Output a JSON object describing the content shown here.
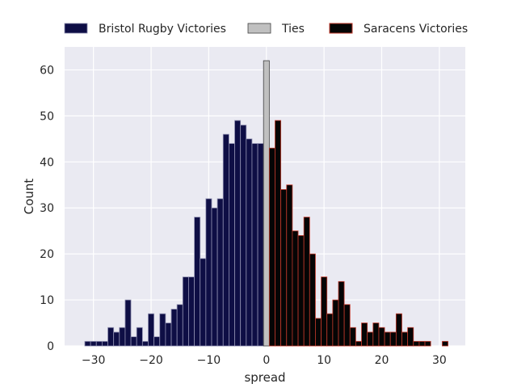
{
  "chart_data": {
    "type": "bar",
    "xlabel": "spread",
    "ylabel": "Count",
    "xlim": [
      -35,
      34.5
    ],
    "ylim": [
      0,
      65
    ],
    "xticks": [
      -30,
      -20,
      -10,
      0,
      10,
      20,
      30
    ],
    "xtick_labels": [
      "−30",
      "−20",
      "−10",
      "0",
      "10",
      "20",
      "30"
    ],
    "yticks": [
      0,
      10,
      20,
      30,
      40,
      50,
      60
    ],
    "ytick_labels": [
      "0",
      "10",
      "20",
      "30",
      "40",
      "50",
      "60"
    ],
    "grid": true,
    "legend_position": "top",
    "series": [
      {
        "name": "Bristol Rugby Victories",
        "color": "#0e0e45",
        "edge": "#8f8fb0",
        "x": [
          -31,
          -30,
          -29,
          -28,
          -27,
          -26,
          -25,
          -24,
          -23,
          -22,
          -21,
          -20,
          -19,
          -18,
          -17,
          -16,
          -15,
          -14,
          -13,
          -12,
          -11,
          -10,
          -9,
          -8,
          -7,
          -6,
          -5,
          -4,
          -3,
          -2,
          -1
        ],
        "values": [
          1,
          1,
          1,
          1,
          4,
          3,
          4,
          10,
          2,
          4,
          1,
          7,
          2,
          7,
          5,
          8,
          9,
          15,
          15,
          28,
          19,
          32,
          30,
          32,
          46,
          44,
          49,
          48,
          45,
          44,
          44
        ]
      },
      {
        "name": "Ties",
        "color": "#c0c0c0",
        "edge": "#404040",
        "x": [
          0
        ],
        "values": [
          62
        ]
      },
      {
        "name": "Saracens Victories",
        "color": "#050505",
        "edge": "#c0392b",
        "x": [
          1,
          2,
          3,
          4,
          5,
          6,
          7,
          8,
          9,
          10,
          11,
          12,
          13,
          14,
          15,
          16,
          17,
          18,
          19,
          20,
          21,
          22,
          23,
          24,
          25,
          26,
          27,
          28,
          29,
          30,
          31
        ],
        "values": [
          43,
          49,
          34,
          35,
          25,
          24,
          28,
          20,
          6,
          15,
          7,
          10,
          14,
          9,
          4,
          1,
          5,
          3,
          5,
          4,
          3,
          3,
          7,
          3,
          4,
          1,
          1,
          1,
          0,
          0,
          1
        ]
      }
    ]
  }
}
